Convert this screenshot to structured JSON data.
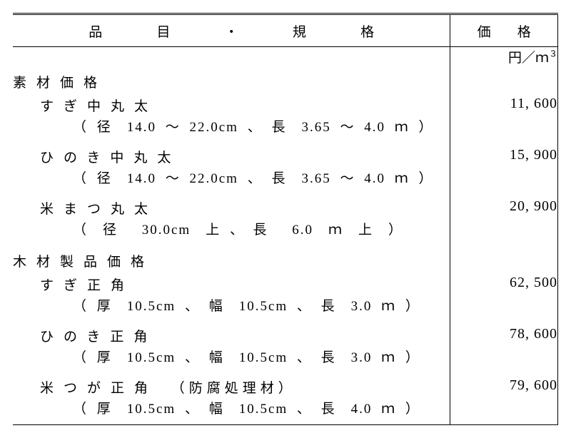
{
  "header": {
    "item_chars": [
      "品",
      "目",
      "・",
      "規",
      "格"
    ],
    "price_chars": [
      "価",
      "格"
    ]
  },
  "unit": "円／ｍ",
  "unit_sup": "３",
  "sections": [
    {
      "title": "素材価格",
      "items": [
        {
          "name": "すぎ中丸太",
          "paren": "",
          "spec": "（ 径　14.0 ～ 22.0cm 、 長　3.65 ～ 4.0 ｍ ）",
          "price": "11, 600"
        },
        {
          "name": "ひのき中丸太",
          "paren": "",
          "spec": "（ 径　14.0 ～ 22.0cm 、 長　3.65 ～ 4.0 ｍ ）",
          "price": "15, 900"
        },
        {
          "name": "米まつ丸太",
          "paren": "",
          "spec": "（　径　 30.0cm　上 、　長　 6.0　ｍ　上　）",
          "price": "20, 900"
        }
      ]
    },
    {
      "title": "木材製品価格",
      "items": [
        {
          "name": "すぎ正角",
          "paren": "",
          "spec": "（ 厚　10.5cm 、 幅　10.5cm 、 長　3.0 ｍ ）",
          "price": "62, 500"
        },
        {
          "name": "ひのき正角",
          "paren": "",
          "spec": "（ 厚　10.5cm 、 幅　10.5cm 、 長　3.0 ｍ ）",
          "price": "78, 600"
        },
        {
          "name": "米つが正角",
          "paren": "（防腐処理材）",
          "spec": "（ 厚　10.5cm 、 幅　10.5cm 、 長　4.0 ｍ ）",
          "price": "79, 600"
        }
      ]
    }
  ]
}
